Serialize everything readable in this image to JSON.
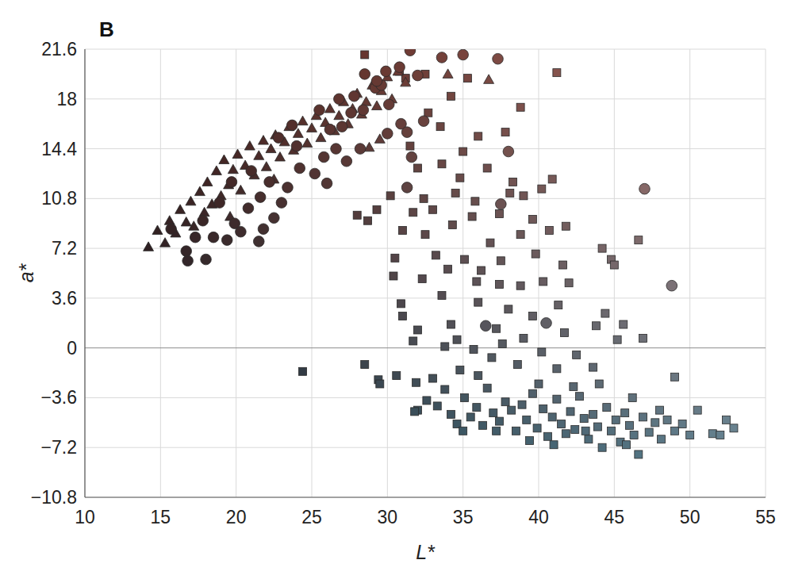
{
  "chart_data": {
    "type": "scatter",
    "title": "B",
    "x_label": "L*",
    "y_label": "a*",
    "xlim": [
      10,
      55
    ],
    "xticks": [
      10,
      15,
      20,
      25,
      30,
      35,
      40,
      45,
      50,
      55
    ],
    "ylim": [
      -10.8,
      21.6
    ],
    "yticks": [
      {
        "value": -10.8,
        "label": "−10.8"
      },
      {
        "value": -7.2,
        "label": "−7.2"
      },
      {
        "value": -3.6,
        "label": "−3.6"
      },
      0,
      3.6,
      7.2,
      10.8,
      14.4,
      18,
      21.6
    ],
    "grid": true,
    "series": [
      {
        "marker": "square",
        "x": [
          28.5,
          30.8,
          31.2,
          32.5,
          34.2,
          35.3,
          38.8,
          41.2,
          32.7,
          33.5,
          35.0,
          36.0,
          37.8,
          31.5,
          32.0,
          33.6,
          34.8,
          36.6,
          38.3,
          40.9,
          30.2,
          32.4,
          34.5,
          35.8,
          38.1,
          39.0,
          40.2,
          28.0,
          29.3,
          31.7,
          33.0,
          35.6,
          37.4,
          39.6,
          41.8,
          28.7,
          31.0,
          32.5,
          34.3,
          36.8,
          38.8,
          40.7,
          44.2,
          46.6,
          30.5,
          33.2,
          35.1,
          36.2,
          37.5,
          39.8,
          41.6,
          44.8,
          45.0,
          30.4,
          32.3,
          34.0,
          35.9,
          37.4,
          38.8,
          40.3,
          42.0,
          30.9,
          33.6,
          36.0,
          38.0,
          39.6,
          41.3,
          44.4,
          31.0,
          32.0,
          34.2,
          37.2,
          39.0,
          41.7,
          43.8,
          45.6,
          31.7,
          34.6,
          35.7,
          37.6,
          40.2,
          42.5,
          45.2,
          46.9,
          33.8,
          36.9,
          38.6,
          41.2,
          43.6,
          49.0,
          24.4,
          28.5,
          29.4,
          29.5,
          30.6,
          31.9,
          32.0,
          32.6,
          33.3,
          33.8,
          34.2,
          34.6,
          35.1,
          35.5,
          35.9,
          36.3,
          36.6,
          37.0,
          37.4,
          37.8,
          38.2,
          38.5,
          38.9,
          39.2,
          39.6,
          39.9,
          40.3,
          40.6,
          40.9,
          41.2,
          41.5,
          41.8,
          42.1,
          42.4,
          42.7,
          43.0,
          43.3,
          43.6,
          43.9,
          44.2,
          44.5,
          44.8,
          45.1,
          45.4,
          45.7,
          46.0,
          46.3,
          46.6,
          46.9,
          47.3,
          47.7,
          48.1,
          48.5,
          49.0,
          49.5,
          50.0,
          50.5,
          51.5,
          52.0,
          52.4,
          52.9,
          33.0,
          34.8,
          36.0,
          40.0,
          42.3,
          44.0,
          46.2,
          37.2,
          39.4,
          41.0,
          43.1,
          35.0,
          31.8,
          45.8,
          48.0
        ],
        "values": [
          21.2,
          20.0,
          19.5,
          19.8,
          18.2,
          19.5,
          17.4,
          19.9,
          17.0,
          16.0,
          14.2,
          15.3,
          15.6,
          14.6,
          13.0,
          13.3,
          12.3,
          13.0,
          12.0,
          12.2,
          11.0,
          10.8,
          11.2,
          10.6,
          11.2,
          11.0,
          11.5,
          9.6,
          10.0,
          9.8,
          10.0,
          9.5,
          9.7,
          9.3,
          8.8,
          9.2,
          8.5,
          8.2,
          8.9,
          7.6,
          8.2,
          8.5,
          7.2,
          7.8,
          6.5,
          6.7,
          6.4,
          5.6,
          6.3,
          6.8,
          6.0,
          6.4,
          6.0,
          5.2,
          5.0,
          5.7,
          4.8,
          4.6,
          4.5,
          4.8,
          4.7,
          3.2,
          3.8,
          3.3,
          2.8,
          2.3,
          3.1,
          2.5,
          2.3,
          1.3,
          1.7,
          1.4,
          0.7,
          1.1,
          1.6,
          1.7,
          0.5,
          0.6,
          -0.1,
          0.3,
          -0.3,
          -0.5,
          0.6,
          0.7,
          0.1,
          -0.7,
          -1.2,
          -1.5,
          -1.4,
          -2.1,
          -1.7,
          -1.2,
          -2.3,
          -2.6,
          -2.0,
          -2.5,
          -4.5,
          -3.8,
          -4.2,
          -3.0,
          -4.8,
          -5.5,
          -3.6,
          -5.0,
          -4.3,
          -5.6,
          -2.9,
          -4.7,
          -5.3,
          -3.9,
          -4.5,
          -6.0,
          -4.1,
          -5.2,
          -3.3,
          -5.8,
          -4.4,
          -6.4,
          -5.0,
          -3.7,
          -5.5,
          -6.2,
          -4.6,
          -5.9,
          -3.5,
          -5.1,
          -6.6,
          -4.8,
          -5.7,
          -7.2,
          -4.3,
          -6.0,
          -5.2,
          -6.8,
          -4.7,
          -5.6,
          -6.3,
          -7.7,
          -5.0,
          -6.1,
          -5.4,
          -6.6,
          -5.2,
          -6.0,
          -5.5,
          -6.3,
          -4.5,
          -6.2,
          -6.3,
          -5.2,
          -5.8,
          -2.2,
          -1.6,
          -2.0,
          -2.6,
          -2.8,
          -2.6,
          -3.6,
          -6.0,
          -6.7,
          -7.0,
          -6.0,
          -6.0,
          -4.6,
          -7.0,
          -4.5
        ]
      },
      {
        "marker": "triangle",
        "x": [
          14.2,
          14.8,
          15.3,
          15.6,
          16.0,
          16.3,
          16.7,
          17.0,
          17.2,
          17.6,
          17.9,
          18.1,
          18.4,
          18.7,
          19.0,
          19.2,
          19.5,
          19.8,
          20.1,
          20.3,
          20.6,
          20.9,
          21.2,
          21.5,
          21.8,
          22.0,
          22.3,
          22.6,
          22.9,
          23.2,
          23.5,
          23.8,
          24.1,
          24.4,
          24.7,
          25.0,
          25.3,
          25.6,
          25.9,
          26.2,
          26.5,
          26.8,
          27.1,
          27.4,
          27.7,
          28.0,
          28.3,
          28.6,
          29.0,
          29.3,
          29.6,
          30.0,
          30.3,
          30.7,
          31.2,
          28.8,
          29.5,
          34.0,
          36.7,
          22.5,
          19.6
        ],
        "values": [
          7.3,
          8.5,
          7.6,
          9.2,
          8.3,
          10.0,
          9.1,
          10.6,
          8.8,
          11.3,
          9.8,
          12.0,
          10.4,
          12.8,
          11.0,
          13.6,
          11.8,
          12.9,
          14.0,
          11.4,
          13.2,
          14.6,
          12.5,
          13.9,
          15.0,
          13.1,
          14.4,
          15.4,
          13.8,
          14.9,
          16.0,
          14.3,
          15.5,
          16.4,
          14.8,
          15.9,
          16.8,
          15.2,
          16.3,
          17.3,
          15.7,
          16.8,
          17.8,
          16.2,
          17.3,
          18.4,
          16.9,
          17.8,
          19.0,
          17.5,
          18.6,
          19.6,
          18.0,
          20.0,
          19.2,
          14.5,
          15.1,
          19.8,
          19.4,
          12.2,
          9.5
        ]
      },
      {
        "marker": "circle",
        "x": [
          16.8,
          18.0,
          16.7,
          15.7,
          17.3,
          18.5,
          19.4,
          20.3,
          21.5,
          21.8,
          22.5,
          19.9,
          17.8,
          18.9,
          20.8,
          21.6,
          23.0,
          23.4,
          19.7,
          21.0,
          22.2,
          24.2,
          25.2,
          26.0,
          25.8,
          24.0,
          22.8,
          26.6,
          27.3,
          28.2,
          27.0,
          26.2,
          28.4,
          27.8,
          28.5,
          29.2,
          29.6,
          30.1,
          30.0,
          30.9,
          31.3,
          31.6,
          31.3,
          32.4,
          32.0,
          30.8,
          29.9,
          31.5,
          33.6,
          35.0,
          37.3,
          29.3,
          26.8,
          25.5,
          23.7,
          27.6,
          47.0,
          48.8,
          36.5,
          40.5,
          37.5,
          38.0
        ],
        "values": [
          6.3,
          6.4,
          7.0,
          8.6,
          8.0,
          8.0,
          7.8,
          8.4,
          7.7,
          8.6,
          9.4,
          9.0,
          9.2,
          10.5,
          10.1,
          10.9,
          10.5,
          11.6,
          12.0,
          12.8,
          12.0,
          13.0,
          12.6,
          11.9,
          13.8,
          14.6,
          15.2,
          14.4,
          13.5,
          14.4,
          16.0,
          15.8,
          17.2,
          18.2,
          19.8,
          18.8,
          19.0,
          17.6,
          15.5,
          16.2,
          15.6,
          13.8,
          11.6,
          16.4,
          19.7,
          20.3,
          20.0,
          21.5,
          21.0,
          21.2,
          20.9,
          19.3,
          18.0,
          17.2,
          16.1,
          17.0,
          11.5,
          4.5,
          1.6,
          1.8,
          10.4,
          14.2
        ]
      }
    ]
  }
}
